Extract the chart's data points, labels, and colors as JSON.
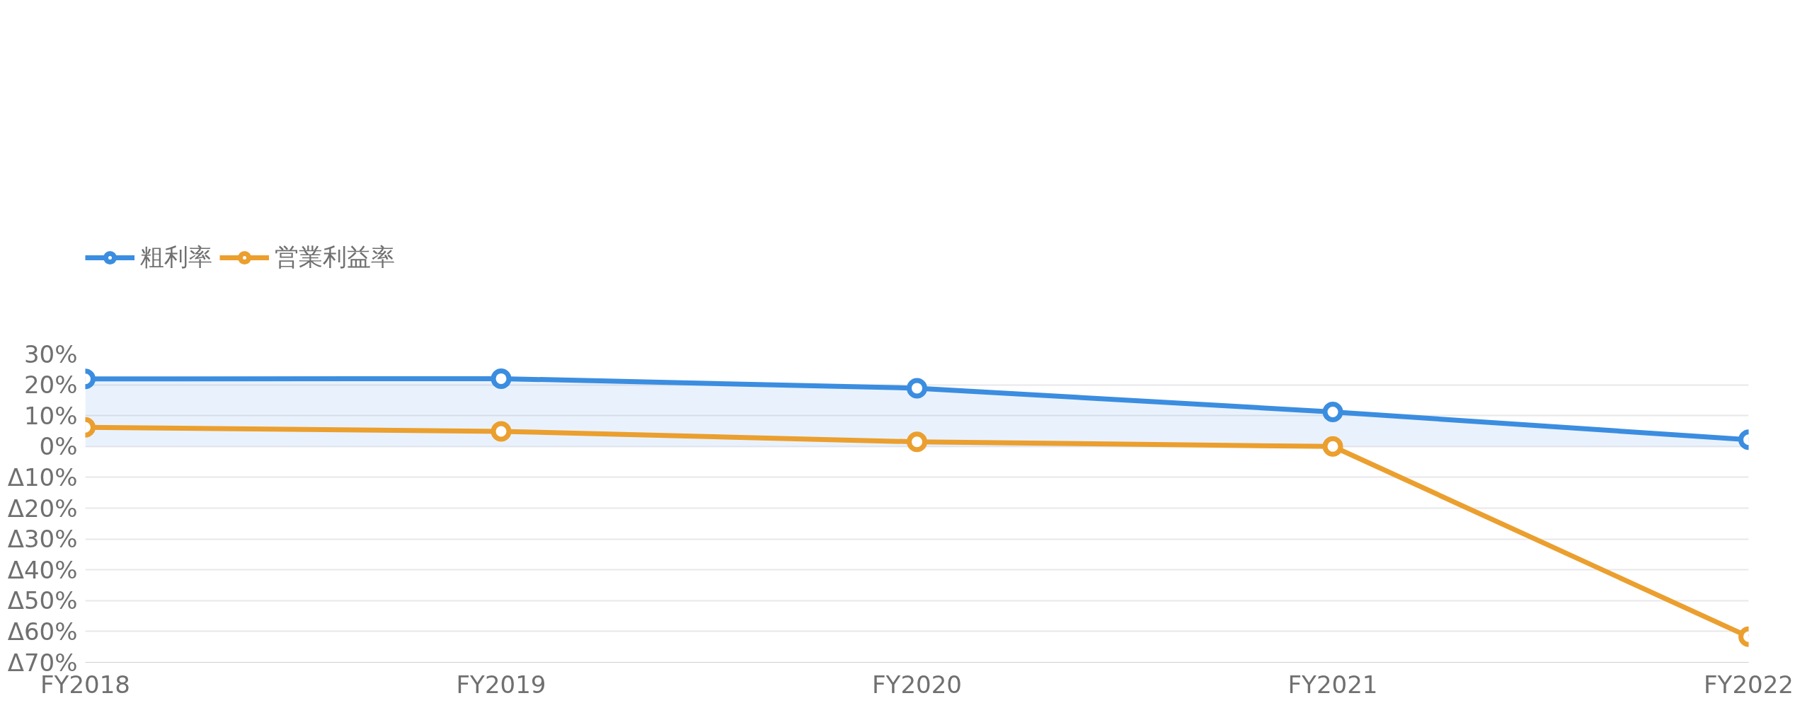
{
  "chart_data": {
    "type": "line",
    "categories": [
      "FY2018",
      "FY2019",
      "FY2020",
      "FY2021",
      "FY2022"
    ],
    "series": [
      {
        "name": "粗利率",
        "type": "area",
        "color": "#3b8de0",
        "values": [
          21.9,
          22.0,
          18.9,
          11.2,
          2.2
        ]
      },
      {
        "name": "営業利益率",
        "color": "#eb9f2e",
        "values": [
          6.2,
          4.9,
          1.5,
          0.0,
          -61.7
        ]
      }
    ],
    "ylim": [
      -70,
      30
    ],
    "yticks": [
      {
        "value": 30,
        "label": "30%"
      },
      {
        "value": 20,
        "label": "20%"
      },
      {
        "value": 10,
        "label": "10%"
      },
      {
        "value": 0,
        "label": "0%"
      },
      {
        "value": -10,
        "label": "Δ10%"
      },
      {
        "value": -20,
        "label": "Δ20%"
      },
      {
        "value": -30,
        "label": "Δ30%"
      },
      {
        "value": -40,
        "label": "Δ40%"
      },
      {
        "value": -50,
        "label": "Δ50%"
      },
      {
        "value": -60,
        "label": "Δ60%"
      },
      {
        "value": -70,
        "label": "Δ70%"
      }
    ],
    "grid": "y",
    "legend": "top left",
    "marker": "circle",
    "line_style": "solid"
  }
}
